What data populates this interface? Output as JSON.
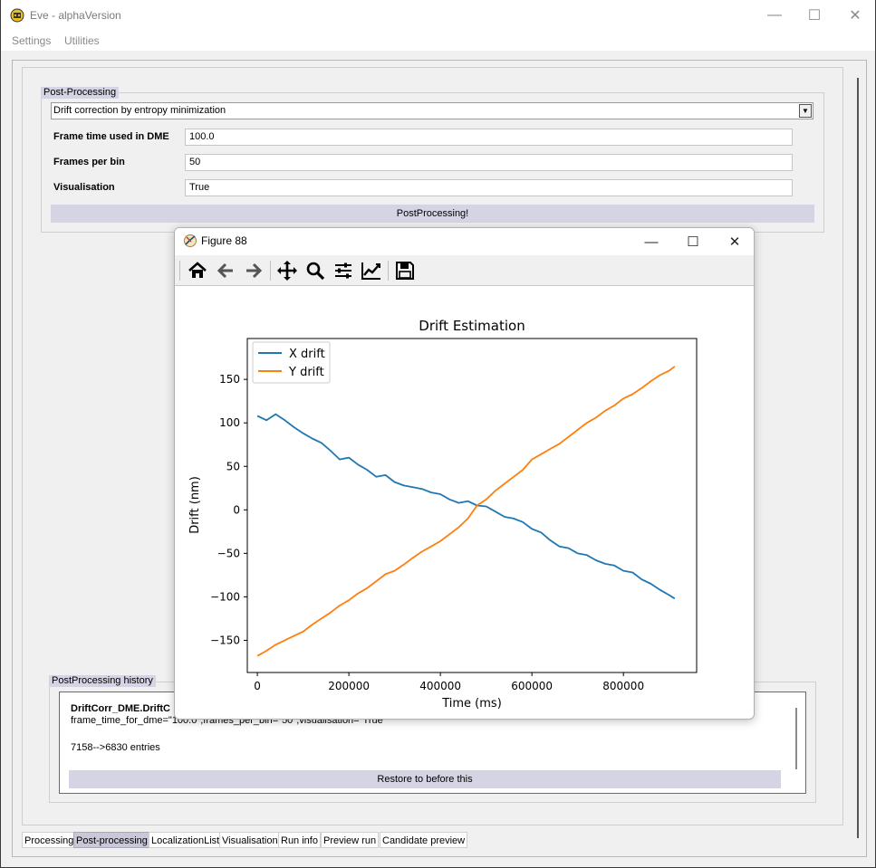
{
  "window": {
    "title": "Eve - alphaVersion",
    "minimize": "—",
    "maximize": "☐",
    "close": "✕"
  },
  "menu": {
    "items": [
      "Settings",
      "Utilities"
    ]
  },
  "post_processing": {
    "group_title": "Post-Processing",
    "method": "Drift correction by entropy minimization",
    "fields": [
      {
        "label": "Frame time used in DME",
        "value": "100.0"
      },
      {
        "label": "Frames per bin",
        "value": "50"
      },
      {
        "label": "Visualisation",
        "value": "True"
      }
    ],
    "button": "PostProcessing!"
  },
  "history": {
    "group_title": "PostProcessing history",
    "entry_title": "DriftCorr_DME.DriftC",
    "entry_params": "frame_time_for_dme=\"100.0\",frames_per_bin=\"50\",visualisation=\"True\"",
    "entry_result": "7158-->6830 entries",
    "restore_button": "Restore to before this"
  },
  "tabs": [
    {
      "label": "Processing",
      "active": false
    },
    {
      "label": "Post-processing",
      "active": true
    },
    {
      "label": "LocalizationList",
      "active": false
    },
    {
      "label": "Visualisation",
      "active": false
    },
    {
      "label": "Run info",
      "active": false
    },
    {
      "label": "Preview run",
      "active": false
    },
    {
      "label": "Candidate preview",
      "active": false
    }
  ],
  "figure_window": {
    "title": "Figure 88",
    "minimize": "—",
    "maximize": "☐",
    "close": "✕",
    "tools": [
      "home-icon",
      "back-arrow-icon",
      "forward-arrow-icon",
      "pan-icon",
      "zoom-icon",
      "configure-subplots-icon",
      "edit-axis-icon",
      "save-icon"
    ]
  },
  "colors": {
    "x_drift": "#1f77b4",
    "y_drift": "#ff7f0e",
    "accent": "#d4d4e4"
  },
  "chart_data": {
    "type": "line",
    "title": "Drift Estimation",
    "xlabel": "Time (ms)",
    "ylabel": "Drift (nm)",
    "xlim": [
      -22000,
      960000
    ],
    "ylim": [
      -187,
      197
    ],
    "xticks": [
      0,
      200000,
      400000,
      600000,
      800000
    ],
    "xtick_labels": [
      "0",
      "200000",
      "400000",
      "600000",
      "800000"
    ],
    "yticks": [
      -150,
      -100,
      -50,
      0,
      50,
      100,
      150
    ],
    "ytick_labels": [
      "−150",
      "−100",
      "−50",
      "0",
      "50",
      "100",
      "150"
    ],
    "legend_position": "upper-left",
    "series": [
      {
        "name": "X drift",
        "x": [
          0,
          20000,
          40000,
          60000,
          80000,
          100000,
          120000,
          140000,
          160000,
          180000,
          200000,
          220000,
          240000,
          260000,
          280000,
          300000,
          320000,
          340000,
          360000,
          380000,
          400000,
          420000,
          440000,
          460000,
          480000,
          500000,
          520000,
          540000,
          560000,
          580000,
          600000,
          620000,
          640000,
          660000,
          680000,
          700000,
          720000,
          740000,
          760000,
          780000,
          800000,
          820000,
          840000,
          860000,
          880000,
          900000,
          912000
        ],
        "values": [
          108,
          103,
          110,
          103,
          95,
          88,
          82,
          77,
          68,
          58,
          60,
          52,
          46,
          38,
          40,
          32,
          28,
          26,
          24,
          20,
          18,
          12,
          8,
          10,
          5,
          4,
          -2,
          -8,
          -10,
          -14,
          -22,
          -26,
          -35,
          -42,
          -44,
          -50,
          -52,
          -58,
          -62,
          -64,
          -70,
          -72,
          -80,
          -85,
          -92,
          -98,
          -102
        ]
      },
      {
        "name": "Y drift",
        "x": [
          0,
          20000,
          40000,
          60000,
          80000,
          100000,
          120000,
          140000,
          160000,
          180000,
          200000,
          220000,
          240000,
          260000,
          280000,
          300000,
          320000,
          340000,
          360000,
          380000,
          400000,
          420000,
          440000,
          460000,
          480000,
          500000,
          520000,
          540000,
          560000,
          580000,
          600000,
          620000,
          640000,
          660000,
          680000,
          700000,
          720000,
          740000,
          760000,
          780000,
          800000,
          820000,
          840000,
          860000,
          880000,
          900000,
          912000
        ],
        "values": [
          -168,
          -162,
          -155,
          -150,
          -145,
          -140,
          -132,
          -125,
          -118,
          -110,
          -104,
          -96,
          -90,
          -82,
          -74,
          -70,
          -63,
          -55,
          -48,
          -42,
          -36,
          -28,
          -20,
          -10,
          5,
          12,
          22,
          30,
          38,
          46,
          58,
          64,
          70,
          76,
          84,
          92,
          100,
          106,
          114,
          120,
          128,
          133,
          140,
          148,
          155,
          160,
          165
        ]
      }
    ]
  }
}
